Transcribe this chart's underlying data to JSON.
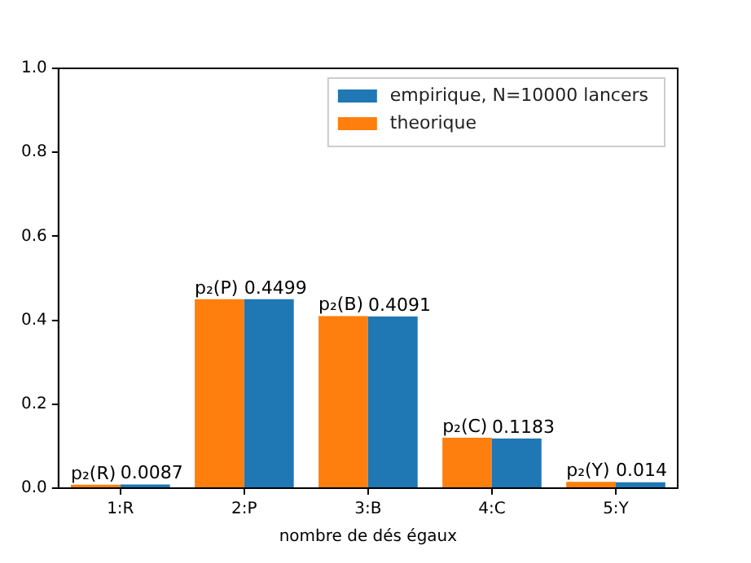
{
  "chart_data": {
    "type": "bar",
    "xlabel": "nombre de dés égaux",
    "categories": [
      "1:R",
      "2:P",
      "3:B",
      "4:C",
      "5:Y"
    ],
    "series": [
      {
        "name": "theorique",
        "color": "#ff7f0e",
        "values": [
          0.008,
          0.45,
          0.41,
          0.12,
          0.015
        ],
        "value_labels": [
          "p₂(R)",
          "p₂(P)",
          "p₂(B)",
          "p₂(C)",
          "p₂(Y)"
        ]
      },
      {
        "name": "empirique, N=10000 lancers",
        "color": "#1f77b4",
        "values": [
          0.0087,
          0.4499,
          0.4091,
          0.1183,
          0.014
        ],
        "value_labels": [
          "0.0087",
          "0.4499",
          "0.4091",
          "0.1183",
          "0.014"
        ]
      }
    ],
    "ylim": [
      0,
      1
    ],
    "yticks": [
      {
        "value": 0,
        "label": "0.0"
      },
      {
        "value": 0.2,
        "label": "0.2"
      },
      {
        "value": 0.4,
        "label": "0.4"
      },
      {
        "value": 0.6,
        "label": "0.6"
      },
      {
        "value": 0.8,
        "label": "0.8"
      },
      {
        "value": 1,
        "label": "1.0"
      }
    ],
    "grid": false,
    "legend": "top right"
  }
}
